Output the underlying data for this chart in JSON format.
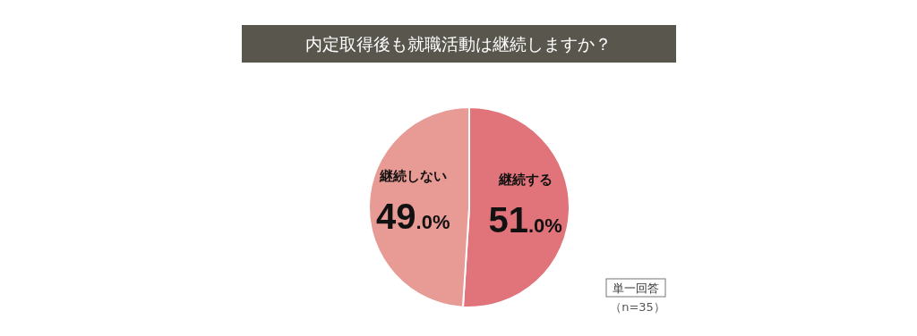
{
  "chart_data": {
    "type": "pie",
    "title": "内定取得後も就職活動は継続しますか？",
    "categories": [
      "継続する",
      "継続しない"
    ],
    "values": [
      51.0,
      49.0
    ],
    "value_labels": [
      "51.0%",
      "49.0%"
    ],
    "colors": [
      "#e0747a",
      "#e89a94"
    ],
    "annotations": [
      "単一回答",
      "（n=35）"
    ]
  }
}
